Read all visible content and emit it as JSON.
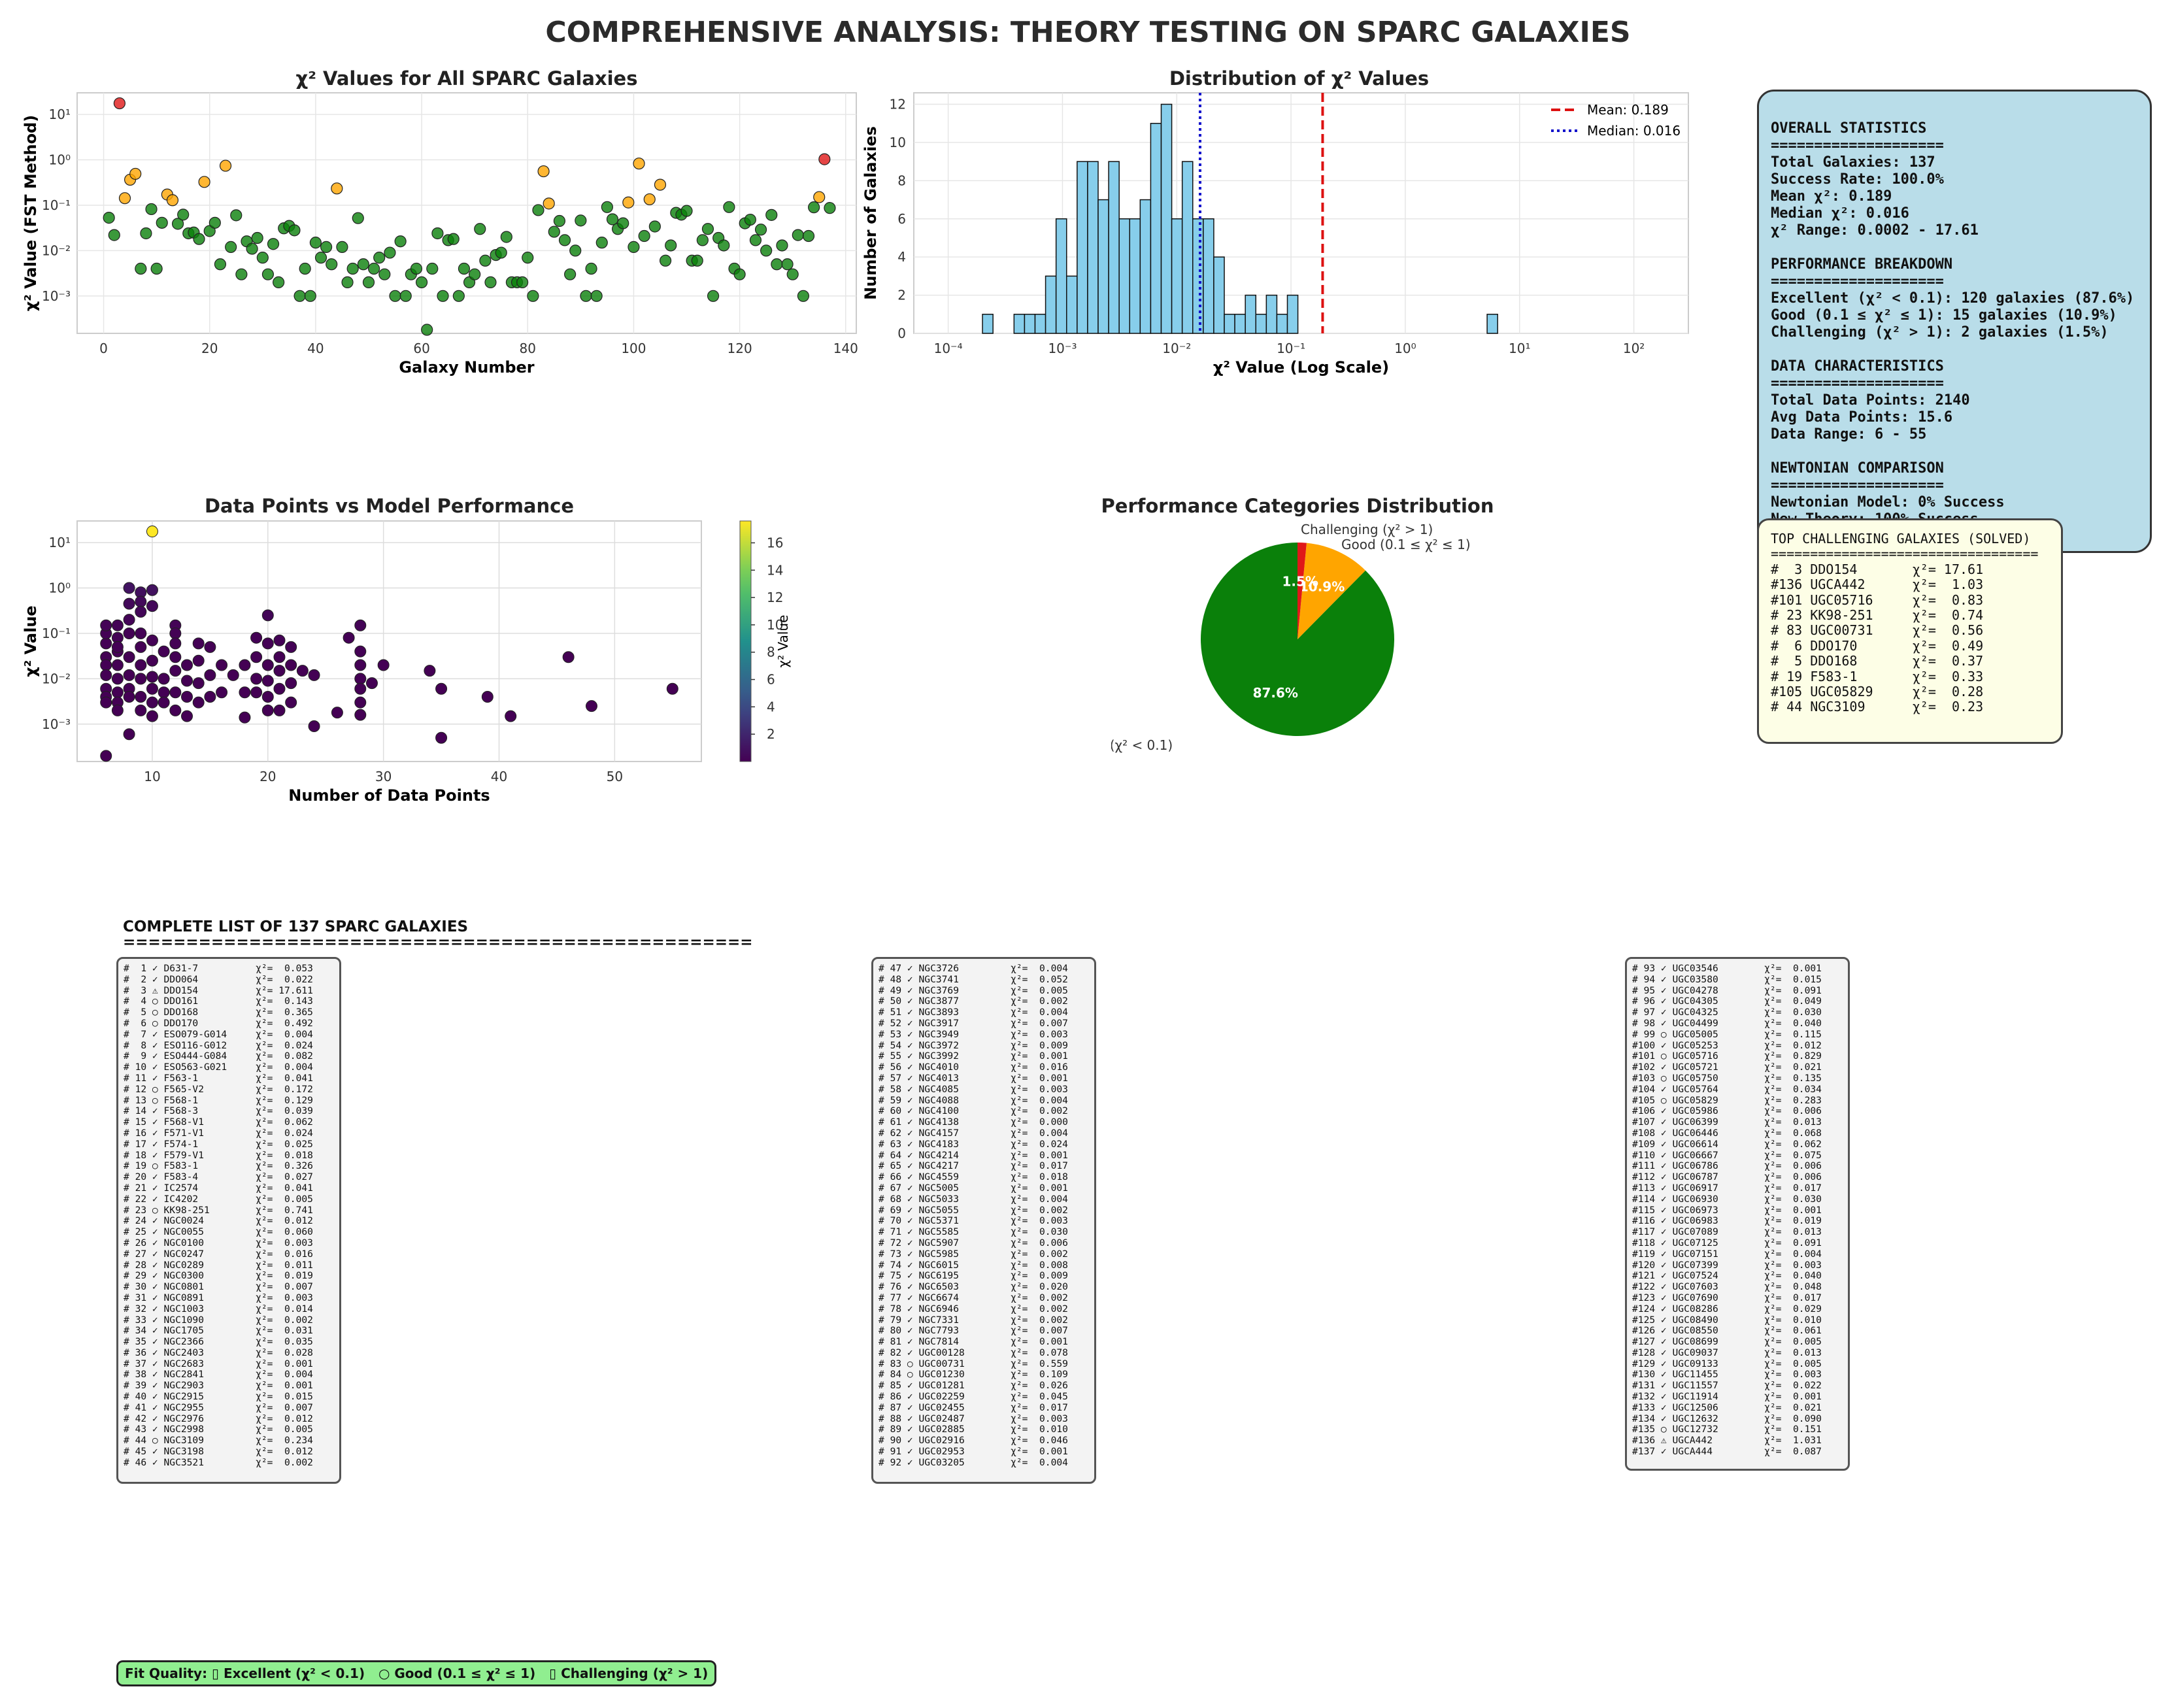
{
  "title": "COMPREHENSIVE ANALYSIS: THEORY TESTING ON SPARC GALAXIES",
  "colors": {
    "excellent": "#0a800a",
    "good": "#ffa500",
    "challenging": "#e01818",
    "hist": "#87ceeb",
    "mean_line": "#dd1111",
    "median_line": "#1111cc",
    "stats_bg": "#b9dde9",
    "top_bg": "#fdfee6",
    "legend_bg": "#90ee90"
  },
  "chart_data": [
    {
      "type": "scatter",
      "title": "χ² Values for All SPARC Galaxies",
      "xlabel": "Galaxy Number",
      "ylabel": "χ² Value (FST Method)",
      "yscale": "log",
      "xlim": [
        -5,
        142
      ],
      "ylim": [
        0.00015,
        30
      ],
      "xticks": [
        0,
        20,
        40,
        60,
        80,
        100,
        120,
        140
      ],
      "yticks": [
        {
          "v": 0.001,
          "label": "10⁻³"
        },
        {
          "v": 0.01,
          "label": "10⁻²"
        },
        {
          "v": 0.1,
          "label": "10⁻¹"
        },
        {
          "v": 1,
          "label": "10⁰"
        },
        {
          "v": 10,
          "label": "10¹"
        }
      ],
      "grid": true,
      "x": [
        1,
        2,
        3,
        4,
        5,
        6,
        7,
        8,
        9,
        10,
        11,
        12,
        13,
        14,
        15,
        16,
        17,
        18,
        19,
        20,
        21,
        22,
        23,
        24,
        25,
        26,
        27,
        28,
        29,
        30,
        31,
        32,
        33,
        34,
        35,
        36,
        37,
        38,
        39,
        40,
        41,
        42,
        43,
        44,
        45,
        46,
        47,
        48,
        49,
        50,
        51,
        52,
        53,
        54,
        55,
        56,
        57,
        58,
        59,
        60,
        61,
        62,
        63,
        64,
        65,
        66,
        67,
        68,
        69,
        70,
        71,
        72,
        73,
        74,
        75,
        76,
        77,
        78,
        79,
        80,
        81,
        82,
        83,
        84,
        85,
        86,
        87,
        88,
        89,
        90,
        91,
        92,
        93,
        94,
        95,
        96,
        97,
        98,
        99,
        100,
        101,
        102,
        103,
        104,
        105,
        106,
        107,
        108,
        109,
        110,
        111,
        112,
        113,
        114,
        115,
        116,
        117,
        118,
        119,
        120,
        121,
        122,
        123,
        124,
        125,
        126,
        127,
        128,
        129,
        130,
        131,
        132,
        133,
        134,
        135,
        136,
        137
      ],
      "y": [
        0.053,
        0.022,
        17.611,
        0.143,
        0.365,
        0.492,
        0.004,
        0.024,
        0.082,
        0.004,
        0.041,
        0.172,
        0.129,
        0.039,
        0.062,
        0.024,
        0.025,
        0.018,
        0.326,
        0.027,
        0.041,
        0.005,
        0.741,
        0.012,
        0.06,
        0.003,
        0.016,
        0.011,
        0.019,
        0.007,
        0.003,
        0.014,
        0.002,
        0.031,
        0.035,
        0.028,
        0.001,
        0.004,
        0.001,
        0.015,
        0.007,
        0.012,
        0.005,
        0.234,
        0.012,
        0.002,
        0.004,
        0.052,
        0.005,
        0.002,
        0.004,
        0.007,
        0.003,
        0.009,
        0.001,
        0.016,
        0.001,
        0.003,
        0.004,
        0.002,
        0.0,
        0.004,
        0.024,
        0.001,
        0.017,
        0.018,
        0.001,
        0.004,
        0.002,
        0.003,
        0.03,
        0.006,
        0.002,
        0.008,
        0.009,
        0.02,
        0.002,
        0.002,
        0.002,
        0.007,
        0.001,
        0.078,
        0.559,
        0.109,
        0.026,
        0.045,
        0.017,
        0.003,
        0.01,
        0.046,
        0.001,
        0.004,
        0.001,
        0.015,
        0.091,
        0.049,
        0.03,
        0.04,
        0.115,
        0.012,
        0.829,
        0.021,
        0.135,
        0.034,
        0.283,
        0.006,
        0.013,
        0.068,
        0.062,
        0.075,
        0.006,
        0.006,
        0.017,
        0.03,
        0.001,
        0.019,
        0.013,
        0.091,
        0.004,
        0.003,
        0.04,
        0.048,
        0.017,
        0.029,
        0.01,
        0.061,
        0.005,
        0.013,
        0.005,
        0.003,
        0.022,
        0.001,
        0.021,
        0.09,
        0.151,
        1.031,
        0.087
      ]
    },
    {
      "type": "bar",
      "subtype": "histogram",
      "title": "Distribution of χ² Values",
      "xlabel": "χ² Value (Log Scale)",
      "ylabel": "Number of Galaxies",
      "xscale": "log",
      "xlim": [
        5e-05,
        300
      ],
      "ylim": [
        0,
        12.6
      ],
      "xticks": [
        {
          "v": 0.0001,
          "label": "10⁻⁴"
        },
        {
          "v": 0.001,
          "label": "10⁻³"
        },
        {
          "v": 0.01,
          "label": "10⁻²"
        },
        {
          "v": 0.1,
          "label": "10⁻¹"
        },
        {
          "v": 1,
          "label": "10⁰"
        },
        {
          "v": 10,
          "label": "10¹"
        },
        {
          "v": 100,
          "label": "10²"
        }
      ],
      "yticks": [
        0,
        2,
        4,
        6,
        8,
        10,
        12
      ],
      "bin_log_start": -3.7,
      "bin_log_width": 0.092,
      "counts": [
        1,
        0,
        0,
        1,
        1,
        1,
        3,
        6,
        3,
        9,
        9,
        7,
        9,
        6,
        6,
        7,
        11,
        12,
        6,
        9,
        6,
        6,
        4,
        1,
        1,
        2,
        1,
        2,
        1,
        2,
        0,
        0,
        0,
        0,
        0,
        0,
        0,
        0,
        0,
        0,
        0,
        0,
        0,
        0,
        0,
        0,
        0,
        0,
        1
      ],
      "mean": 0.189,
      "median": 0.016,
      "legend": [
        "Mean: 0.189",
        "Median: 0.016"
      ],
      "legend_position": "upper right",
      "grid": true
    },
    {
      "type": "scatter",
      "title": "Data Points vs Model Performance",
      "xlabel": "Number of Data Points",
      "ylabel": "χ² Value",
      "yscale": "log",
      "xlim": [
        3.5,
        57.5
      ],
      "ylim": [
        0.00015,
        30
      ],
      "xticks": [
        10,
        20,
        30,
        40,
        50
      ],
      "yticks": [
        {
          "v": 0.001,
          "label": "10⁻³"
        },
        {
          "v": 0.01,
          "label": "10⁻²"
        },
        {
          "v": 0.1,
          "label": "10⁻¹"
        },
        {
          "v": 1,
          "label": "10⁰"
        },
        {
          "v": 10,
          "label": "10¹"
        }
      ],
      "colorbar": {
        "label": "χ² Value",
        "ticks": [
          2,
          4,
          6,
          8,
          10,
          12,
          14,
          16
        ],
        "range": [
          0,
          17.6
        ]
      },
      "points": [
        [
          6,
          0.0002
        ],
        [
          10,
          17.61
        ],
        [
          6,
          0.06
        ],
        [
          6,
          0.1
        ],
        [
          6,
          0.15
        ],
        [
          6,
          0.03
        ],
        [
          6,
          0.02
        ],
        [
          6,
          0.012
        ],
        [
          6,
          0.006
        ],
        [
          6,
          0.004
        ],
        [
          6,
          0.003
        ],
        [
          7,
          0.08
        ],
        [
          7,
          0.04
        ],
        [
          7,
          0.02
        ],
        [
          7,
          0.01
        ],
        [
          7,
          0.005
        ],
        [
          7,
          0.003
        ],
        [
          7,
          0.002
        ],
        [
          7,
          0.05
        ],
        [
          7,
          0.15
        ],
        [
          8,
          1.0
        ],
        [
          8,
          0.45
        ],
        [
          8,
          0.2
        ],
        [
          8,
          0.1
        ],
        [
          8,
          0.03
        ],
        [
          8,
          0.012
        ],
        [
          8,
          0.006
        ],
        [
          8,
          0.004
        ],
        [
          8,
          0.0006
        ],
        [
          9,
          0.8
        ],
        [
          9,
          0.5
        ],
        [
          9,
          0.3
        ],
        [
          9,
          0.1
        ],
        [
          9,
          0.05
        ],
        [
          9,
          0.02
        ],
        [
          9,
          0.01
        ],
        [
          9,
          0.004
        ],
        [
          9,
          0.002
        ],
        [
          10,
          0.9
        ],
        [
          10,
          0.4
        ],
        [
          10,
          0.07
        ],
        [
          10,
          0.025
        ],
        [
          10,
          0.011
        ],
        [
          10,
          0.006
        ],
        [
          10,
          0.003
        ],
        [
          10,
          0.0015
        ],
        [
          11,
          0.04
        ],
        [
          11,
          0.01
        ],
        [
          11,
          0.005
        ],
        [
          11,
          0.003
        ],
        [
          12,
          0.15
        ],
        [
          12,
          0.1
        ],
        [
          12,
          0.06
        ],
        [
          12,
          0.03
        ],
        [
          12,
          0.015
        ],
        [
          12,
          0.005
        ],
        [
          12,
          0.002
        ],
        [
          13,
          0.02
        ],
        [
          13,
          0.009
        ],
        [
          13,
          0.004
        ],
        [
          13,
          0.0015
        ],
        [
          14,
          0.06
        ],
        [
          14,
          0.025
        ],
        [
          14,
          0.008
        ],
        [
          14,
          0.003
        ],
        [
          15,
          0.05
        ],
        [
          15,
          0.012
        ],
        [
          15,
          0.004
        ],
        [
          16,
          0.02
        ],
        [
          16,
          0.005
        ],
        [
          17,
          0.012
        ],
        [
          18,
          0.02
        ],
        [
          18,
          0.005
        ],
        [
          18,
          0.0014
        ],
        [
          19,
          0.08
        ],
        [
          19,
          0.03
        ],
        [
          19,
          0.01
        ],
        [
          19,
          0.005
        ],
        [
          20,
          0.25
        ],
        [
          20,
          0.06
        ],
        [
          20,
          0.02
        ],
        [
          20,
          0.009
        ],
        [
          20,
          0.004
        ],
        [
          20,
          0.002
        ],
        [
          21,
          0.07
        ],
        [
          21,
          0.03
        ],
        [
          21,
          0.015
        ],
        [
          21,
          0.006
        ],
        [
          21,
          0.002
        ],
        [
          22,
          0.05
        ],
        [
          22,
          0.02
        ],
        [
          22,
          0.008
        ],
        [
          22,
          0.003
        ],
        [
          23,
          0.015
        ],
        [
          24,
          0.012
        ],
        [
          24,
          0.0009
        ],
        [
          26,
          0.0018
        ],
        [
          27,
          0.08
        ],
        [
          28,
          0.15
        ],
        [
          28,
          0.04
        ],
        [
          28,
          0.02
        ],
        [
          28,
          0.01
        ],
        [
          28,
          0.006
        ],
        [
          28,
          0.003
        ],
        [
          28,
          0.0016
        ],
        [
          29,
          0.008
        ],
        [
          30,
          0.02
        ],
        [
          34,
          0.015
        ],
        [
          35,
          0.006
        ],
        [
          35,
          0.0005
        ],
        [
          39,
          0.004
        ],
        [
          41,
          0.0015
        ],
        [
          46,
          0.03
        ],
        [
          48,
          0.0025
        ],
        [
          55,
          0.006
        ]
      ]
    },
    {
      "type": "pie",
      "title": "Performance Categories Distribution",
      "labels": [
        "Excellent (χ² < 0.1)",
        "Good (0.1 ≤ χ² ≤ 1)",
        "Challenging (χ² > 1)"
      ],
      "values": [
        87.6,
        10.9,
        1.5
      ],
      "pct_labels": [
        "87.6%",
        "10.9%",
        "1.5%"
      ]
    }
  ],
  "stats_box": {
    "text": "OVERALL STATISTICS\n====================\nTotal Galaxies: 137\nSuccess Rate: 100.0%\nMean χ²: 0.189\nMedian χ²: 0.016\nχ² Range: 0.0002 - 17.61\n\nPERFORMANCE BREAKDOWN\n====================\nExcellent (χ² < 0.1): 120 galaxies (87.6%)\nGood (0.1 ≤ χ² ≤ 1): 15 galaxies (10.9%)\nChallenging (χ² > 1): 2 galaxies (1.5%)\n\nDATA CHARACTERISTICS\n====================\nTotal Data Points: 2140\nAvg Data Points: 15.6\nData Range: 6 - 55\n\nNEWTONIAN COMPARISON\n====================\nNewtonian Model: 0% Success\nNew Theory: 100% Success"
  },
  "top_box": {
    "text": "TOP CHALLENGING GALAXIES (SOLVED)\n==================================\n#  3 DDO154       χ²= 17.61\n#136 UGCA442      χ²=  1.03\n#101 UGC05716     χ²=  0.83\n# 23 KK98-251     χ²=  0.74\n# 83 UGC00731     χ²=  0.56\n#  6 DDO170       χ²=  0.49\n#  5 DDO168       χ²=  0.37\n# 19 F583-1       χ²=  0.33\n#105 UGC05829     χ²=  0.28\n# 44 NGC3109      χ²=  0.23"
  },
  "list_heading": "COMPLETE LIST OF 137 SPARC GALAXIES\n==================================================",
  "list_columns": [
    "#  1 ✓ D631-7          χ²=  0.053\n#  2 ✓ DDO064          χ²=  0.022\n#  3 ⚠ DDO154          χ²= 17.611\n#  4 ○ DDO161          χ²=  0.143\n#  5 ○ DDO168          χ²=  0.365\n#  6 ○ DDO170          χ²=  0.492\n#  7 ✓ ESO079-G014     χ²=  0.004\n#  8 ✓ ESO116-G012     χ²=  0.024\n#  9 ✓ ESO444-G084     χ²=  0.082\n# 10 ✓ ESO563-G021     χ²=  0.004\n# 11 ✓ F563-1          χ²=  0.041\n# 12 ○ F565-V2         χ²=  0.172\n# 13 ○ F568-1          χ²=  0.129\n# 14 ✓ F568-3          χ²=  0.039\n# 15 ✓ F568-V1         χ²=  0.062\n# 16 ✓ F571-V1         χ²=  0.024\n# 17 ✓ F574-1          χ²=  0.025\n# 18 ✓ F579-V1         χ²=  0.018\n# 19 ○ F583-1          χ²=  0.326\n# 20 ✓ F583-4          χ²=  0.027\n# 21 ✓ IC2574          χ²=  0.041\n# 22 ✓ IC4202          χ²=  0.005\n# 23 ○ KK98-251        χ²=  0.741\n# 24 ✓ NGC0024         χ²=  0.012\n# 25 ✓ NGC0055         χ²=  0.060\n# 26 ✓ NGC0100         χ²=  0.003\n# 27 ✓ NGC0247         χ²=  0.016\n# 28 ✓ NGC0289         χ²=  0.011\n# 29 ✓ NGC0300         χ²=  0.019\n# 30 ✓ NGC0801         χ²=  0.007\n# 31 ✓ NGC0891         χ²=  0.003\n# 32 ✓ NGC1003         χ²=  0.014\n# 33 ✓ NGC1090         χ²=  0.002\n# 34 ✓ NGC1705         χ²=  0.031\n# 35 ✓ NGC2366         χ²=  0.035\n# 36 ✓ NGC2403         χ²=  0.028\n# 37 ✓ NGC2683         χ²=  0.001\n# 38 ✓ NGC2841         χ²=  0.004\n# 39 ✓ NGC2903         χ²=  0.001\n# 40 ✓ NGC2915         χ²=  0.015\n# 41 ✓ NGC2955         χ²=  0.007\n# 42 ✓ NGC2976         χ²=  0.012\n# 43 ✓ NGC2998         χ²=  0.005\n# 44 ○ NGC3109         χ²=  0.234\n# 45 ✓ NGC3198         χ²=  0.012\n# 46 ✓ NGC3521         χ²=  0.002",
    "# 47 ✓ NGC3726         χ²=  0.004\n# 48 ✓ NGC3741         χ²=  0.052\n# 49 ✓ NGC3769         χ²=  0.005\n# 50 ✓ NGC3877         χ²=  0.002\n# 51 ✓ NGC3893         χ²=  0.004\n# 52 ✓ NGC3917         χ²=  0.007\n# 53 ✓ NGC3949         χ²=  0.003\n# 54 ✓ NGC3972         χ²=  0.009\n# 55 ✓ NGC3992         χ²=  0.001\n# 56 ✓ NGC4010         χ²=  0.016\n# 57 ✓ NGC4013         χ²=  0.001\n# 58 ✓ NGC4085         χ²=  0.003\n# 59 ✓ NGC4088         χ²=  0.004\n# 60 ✓ NGC4100         χ²=  0.002\n# 61 ✓ NGC4138         χ²=  0.000\n# 62 ✓ NGC4157         χ²=  0.004\n# 63 ✓ NGC4183         χ²=  0.024\n# 64 ✓ NGC4214         χ²=  0.001\n# 65 ✓ NGC4217         χ²=  0.017\n# 66 ✓ NGC4559         χ²=  0.018\n# 67 ✓ NGC5005         χ²=  0.001\n# 68 ✓ NGC5033         χ²=  0.004\n# 69 ✓ NGC5055         χ²=  0.002\n# 70 ✓ NGC5371         χ²=  0.003\n# 71 ✓ NGC5585         χ²=  0.030\n# 72 ✓ NGC5907         χ²=  0.006\n# 73 ✓ NGC5985         χ²=  0.002\n# 74 ✓ NGC6015         χ²=  0.008\n# 75 ✓ NGC6195         χ²=  0.009\n# 76 ✓ NGC6503         χ²=  0.020\n# 77 ✓ NGC6674         χ²=  0.002\n# 78 ✓ NGC6946         χ²=  0.002\n# 79 ✓ NGC7331         χ²=  0.002\n# 80 ✓ NGC7793         χ²=  0.007\n# 81 ✓ NGC7814         χ²=  0.001\n# 82 ✓ UGC00128        χ²=  0.078\n# 83 ○ UGC00731        χ²=  0.559\n# 84 ○ UGC01230        χ²=  0.109\n# 85 ✓ UGC01281        χ²=  0.026\n# 86 ✓ UGC02259        χ²=  0.045\n# 87 ✓ UGC02455        χ²=  0.017\n# 88 ✓ UGC02487        χ²=  0.003\n# 89 ✓ UGC02885        χ²=  0.010\n# 90 ✓ UGC02916        χ²=  0.046\n# 91 ✓ UGC02953        χ²=  0.001\n# 92 ✓ UGC03205        χ²=  0.004",
    "# 93 ✓ UGC03546        χ²=  0.001\n# 94 ✓ UGC03580        χ²=  0.015\n# 95 ✓ UGC04278        χ²=  0.091\n# 96 ✓ UGC04305        χ²=  0.049\n# 97 ✓ UGC04325        χ²=  0.030\n# 98 ✓ UGC04499        χ²=  0.040\n# 99 ○ UGC05005        χ²=  0.115\n#100 ✓ UGC05253        χ²=  0.012\n#101 ○ UGC05716        χ²=  0.829\n#102 ✓ UGC05721        χ²=  0.021\n#103 ○ UGC05750        χ²=  0.135\n#104 ✓ UGC05764        χ²=  0.034\n#105 ○ UGC05829        χ²=  0.283\n#106 ✓ UGC05986        χ²=  0.006\n#107 ✓ UGC06399        χ²=  0.013\n#108 ✓ UGC06446        χ²=  0.068\n#109 ✓ UGC06614        χ²=  0.062\n#110 ✓ UGC06667        χ²=  0.075\n#111 ✓ UGC06786        χ²=  0.006\n#112 ✓ UGC06787        χ²=  0.006\n#113 ✓ UGC06917        χ²=  0.017\n#114 ✓ UGC06930        χ²=  0.030\n#115 ✓ UGC06973        χ²=  0.001\n#116 ✓ UGC06983        χ²=  0.019\n#117 ✓ UGC07089        χ²=  0.013\n#118 ✓ UGC07125        χ²=  0.091\n#119 ✓ UGC07151        χ²=  0.004\n#120 ✓ UGC07399        χ²=  0.003\n#121 ✓ UGC07524        χ²=  0.040\n#122 ✓ UGC07603        χ²=  0.048\n#123 ✓ UGC07690        χ²=  0.017\n#124 ✓ UGC08286        χ²=  0.029\n#125 ✓ UGC08490        χ²=  0.010\n#126 ✓ UGC08550        χ²=  0.061\n#127 ✓ UGC08699        χ²=  0.005\n#128 ✓ UGC09037        χ²=  0.013\n#129 ✓ UGC09133        χ²=  0.005\n#130 ✓ UGC11455        χ²=  0.003\n#131 ✓ UGC11557        χ²=  0.022\n#132 ✓ UGC11914        χ²=  0.001\n#133 ✓ UGC12506        χ²=  0.021\n#134 ✓ UGC12632        χ²=  0.090\n#135 ○ UGC12732        χ²=  0.151\n#136 ⚠ UGCA442         χ²=  1.031\n#137 ✓ UGCA444         χ²=  0.087"
  ],
  "legend_bar": "Fit Quality: ▯ Excellent (χ² < 0.1)   ○ Good (0.1 ≤ χ² ≤ 1)   ▯ Challenging (χ² > 1)"
}
